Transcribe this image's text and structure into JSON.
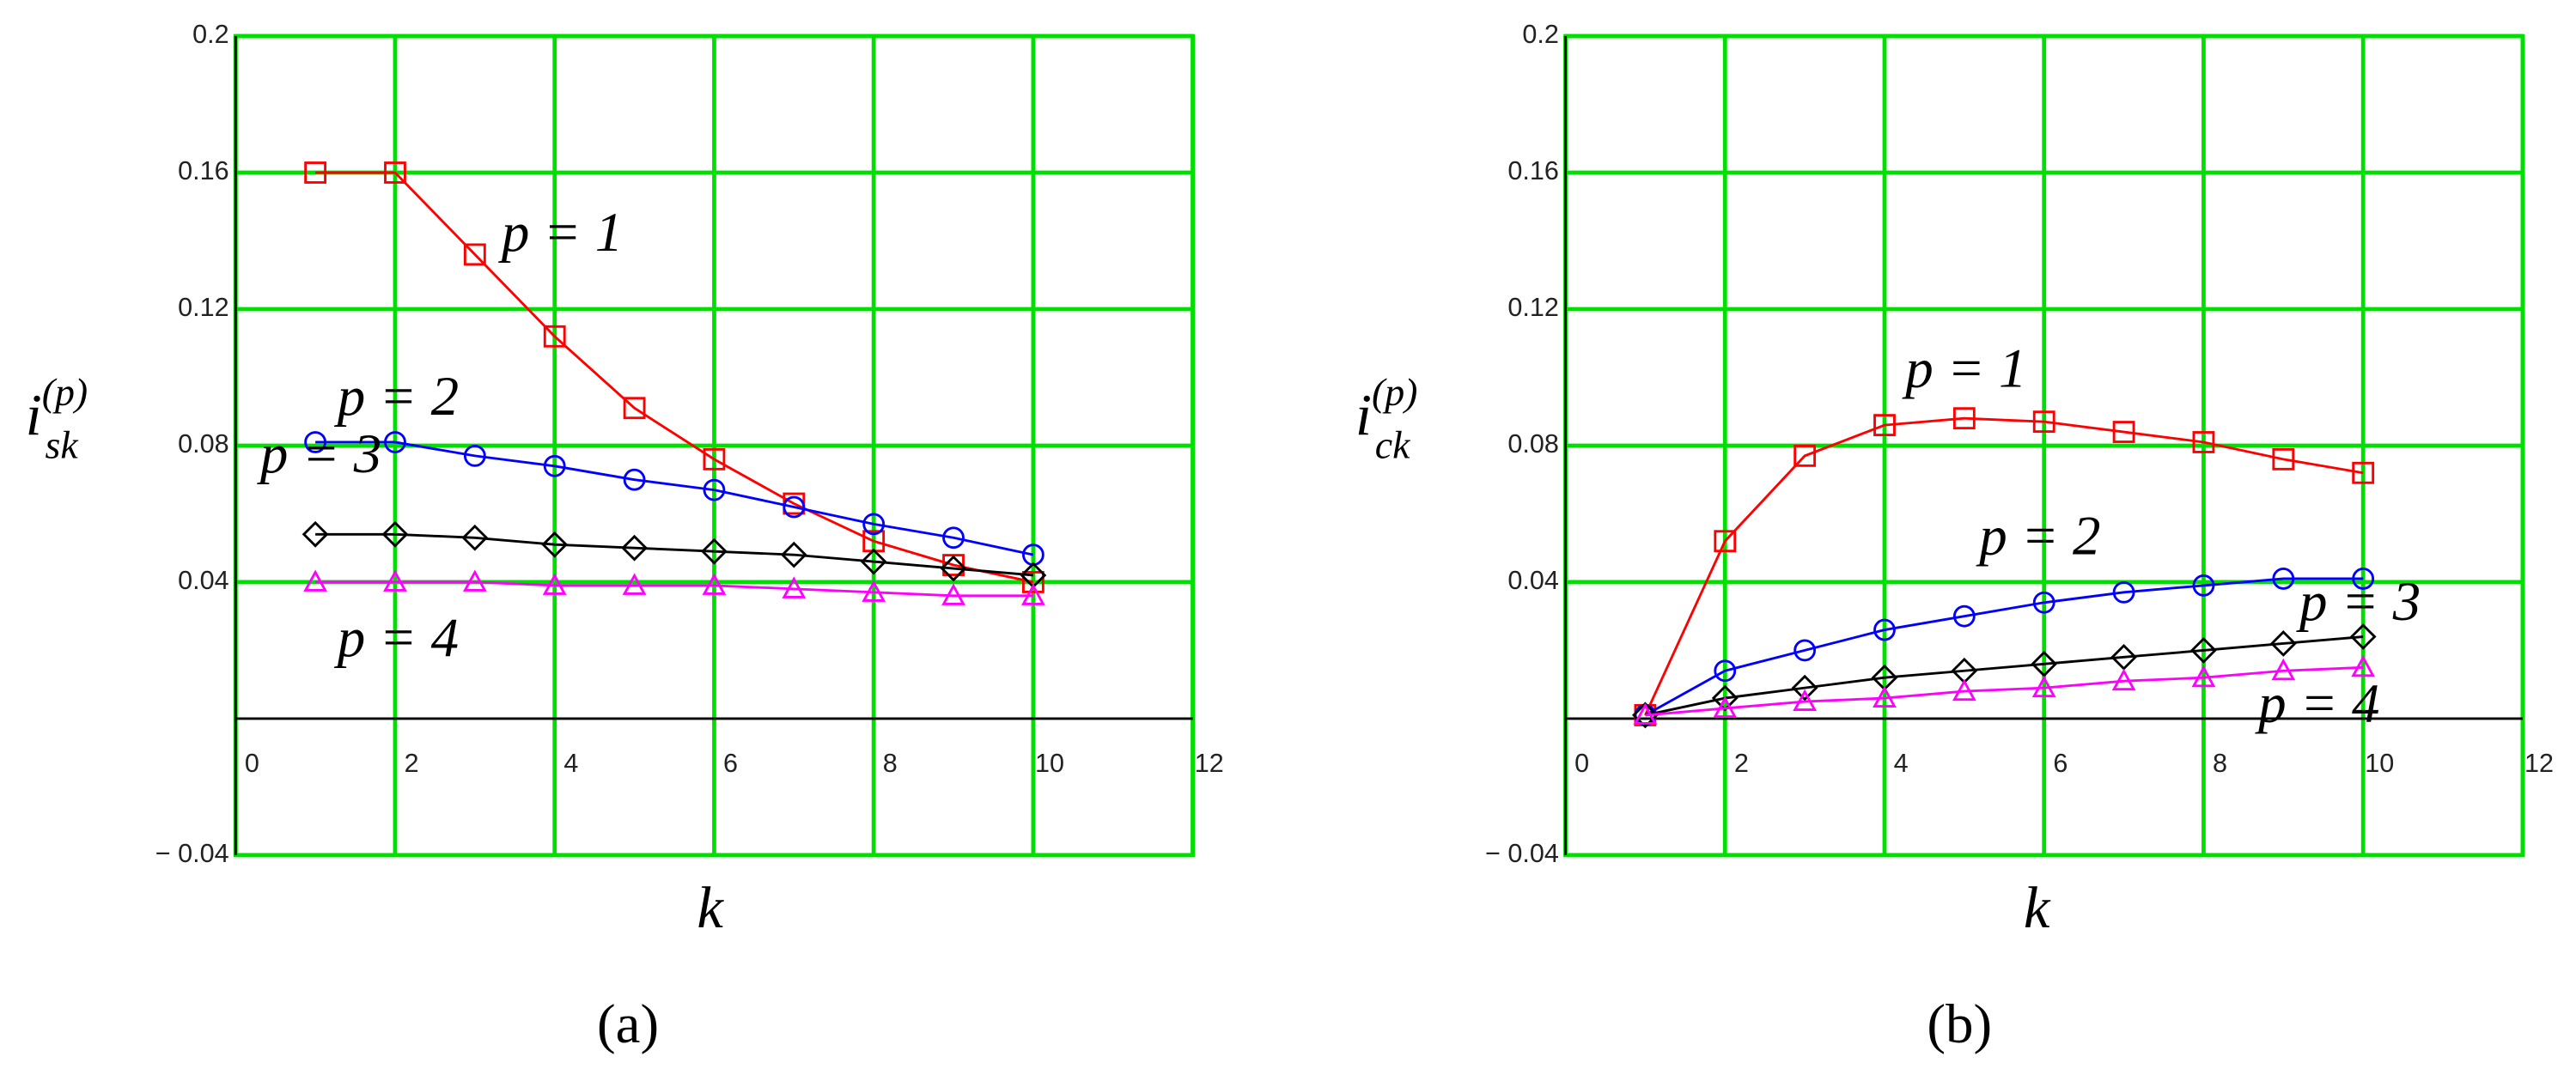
{
  "chart_data": [
    {
      "type": "line",
      "label": "(a)",
      "x_label": "k",
      "y_label": {
        "base": "i",
        "sub": "sk",
        "sup": "(p)"
      },
      "x": [
        1,
        2,
        3,
        4,
        5,
        6,
        7,
        8,
        9,
        10
      ],
      "xlim": [
        0,
        12
      ],
      "xticks": [
        0,
        2,
        4,
        6,
        8,
        10,
        12
      ],
      "ylim": [
        -0.04,
        0.2
      ],
      "yticks": [
        {
          "value": -0.04,
          "label": "− 0.04"
        },
        0.04,
        0.08,
        0.12,
        0.16,
        0.2
      ],
      "grid": true,
      "series": [
        {
          "name": "p = 1",
          "color": "#ff0000",
          "marker": "square",
          "values": [
            0.16,
            0.16,
            0.136,
            0.112,
            0.091,
            0.076,
            0.063,
            0.052,
            0.045,
            0.04
          ]
        },
        {
          "name": "p = 2",
          "color": "#0000ff",
          "marker": "circle",
          "values": [
            0.081,
            0.081,
            0.077,
            0.074,
            0.07,
            0.067,
            0.062,
            0.057,
            0.053,
            0.048
          ]
        },
        {
          "name": "p = 3",
          "color": "#000000",
          "marker": "diamond",
          "values": [
            0.054,
            0.054,
            0.053,
            0.051,
            0.05,
            0.049,
            0.048,
            0.046,
            0.044,
            0.042
          ]
        },
        {
          "name": "p = 4",
          "color": "#ff00ff",
          "marker": "triangle",
          "values": [
            0.04,
            0.04,
            0.04,
            0.039,
            0.039,
            0.039,
            0.038,
            0.037,
            0.036,
            0.036
          ]
        }
      ]
    },
    {
      "type": "line",
      "label": "(b)",
      "x_label": "k",
      "y_label": {
        "base": "i",
        "sub": "ck",
        "sup": "(p)"
      },
      "x": [
        1,
        2,
        3,
        4,
        5,
        6,
        7,
        8,
        9,
        10
      ],
      "xlim": [
        0,
        12
      ],
      "xticks": [
        0,
        2,
        4,
        6,
        8,
        10,
        12
      ],
      "ylim": [
        -0.04,
        0.2
      ],
      "yticks": [
        {
          "value": -0.04,
          "label": "− 0.04"
        },
        0.04,
        0.08,
        0.12,
        0.16,
        0.2
      ],
      "grid": true,
      "series": [
        {
          "name": "p = 1",
          "color": "#ff0000",
          "marker": "square",
          "values": [
            0.001,
            0.052,
            0.077,
            0.086,
            0.088,
            0.087,
            0.084,
            0.081,
            0.076,
            0.072
          ]
        },
        {
          "name": "p = 2",
          "color": "#0000ff",
          "marker": "circle",
          "values": [
            0.001,
            0.014,
            0.02,
            0.026,
            0.03,
            0.034,
            0.037,
            0.039,
            0.041,
            0.041
          ]
        },
        {
          "name": "p = 3",
          "color": "#000000",
          "marker": "diamond",
          "values": [
            0.001,
            0.006,
            0.009,
            0.012,
            0.014,
            0.016,
            0.018,
            0.02,
            0.022,
            0.024
          ]
        },
        {
          "name": "p = 4",
          "color": "#ff00ff",
          "marker": "triangle",
          "values": [
            0.001,
            0.003,
            0.005,
            0.006,
            0.008,
            0.009,
            0.011,
            0.012,
            0.014,
            0.015
          ]
        }
      ]
    }
  ]
}
